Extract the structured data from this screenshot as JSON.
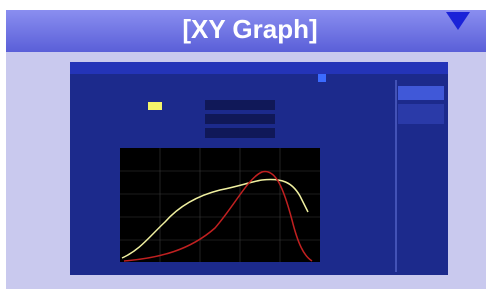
{
  "header": {
    "title": "[XY Graph]"
  }
}
